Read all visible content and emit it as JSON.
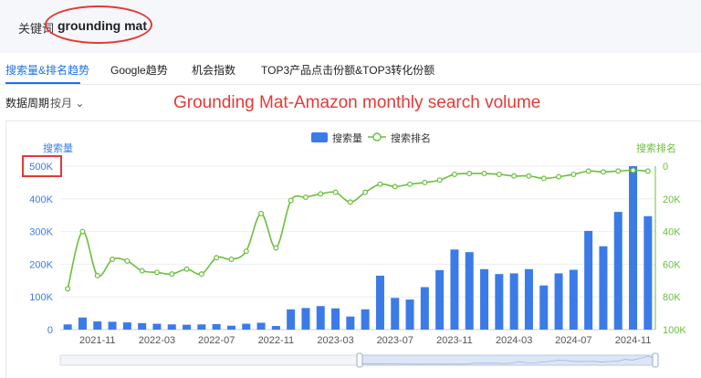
{
  "keyword_bar": {
    "label": "关键词",
    "value": "grounding mat"
  },
  "tabs": [
    {
      "label": "搜索量&排名趋势",
      "active": true
    },
    {
      "label": "Google趋势",
      "active": false
    },
    {
      "label": "机会指数",
      "active": false
    },
    {
      "label": "TOP3产品点击份额&TOP3转化份额",
      "active": false
    }
  ],
  "period": {
    "label": "数据周期",
    "value": "按月",
    "icon": "chevron-down-icon"
  },
  "annotation": "Grounding Mat-Amazon monthly search volume",
  "colors": {
    "bar": "#3b7be8",
    "line": "#6cbf3d",
    "active_tab": "#1a73e8",
    "annotation": "#e53935"
  },
  "chart_data": {
    "type": "bar",
    "legend": {
      "placement": "top-center",
      "bar_label": "搜索量",
      "line_label": "搜索排名"
    },
    "left_axis": {
      "title": "搜索量",
      "range": [
        0,
        500000
      ],
      "ticks": [
        "0",
        "100K",
        "200K",
        "300K",
        "400K",
        "500K"
      ]
    },
    "right_axis": {
      "title": "搜索排名",
      "range": [
        0,
        100000
      ],
      "reversed": true,
      "ticks": [
        "0",
        "20K",
        "40K",
        "60K",
        "80K",
        "100K"
      ]
    },
    "x_tick_labels": [
      "2021-11",
      "2022-03",
      "2022-07",
      "2022-11",
      "2023-03",
      "2023-07",
      "2023-11",
      "2024-03",
      "2024-07",
      "2024-11"
    ],
    "x_tick_indices": [
      2,
      6,
      10,
      14,
      18,
      22,
      26,
      30,
      34,
      38
    ],
    "categories": [
      "2021-09",
      "2021-10",
      "2021-11",
      "2021-12",
      "2022-01",
      "2022-02",
      "2022-03",
      "2022-04",
      "2022-05",
      "2022-06",
      "2022-07",
      "2022-08",
      "2022-09",
      "2022-10",
      "2022-11",
      "2022-12",
      "2023-01",
      "2023-02",
      "2023-03",
      "2023-04",
      "2023-05",
      "2023-06",
      "2023-07",
      "2023-08",
      "2023-09",
      "2023-10",
      "2023-11",
      "2023-12",
      "2024-01",
      "2024-02",
      "2024-03",
      "2024-04",
      "2024-05",
      "2024-06",
      "2024-07",
      "2024-08",
      "2024-09",
      "2024-10",
      "2024-11",
      "2024-12"
    ],
    "series": [
      {
        "name": "搜索量",
        "type": "bar",
        "values": [
          16000,
          37000,
          25000,
          24000,
          22000,
          20000,
          18000,
          16000,
          15000,
          16000,
          17000,
          12000,
          18000,
          21000,
          11000,
          62000,
          66000,
          72000,
          65000,
          40000,
          62000,
          165000,
          97000,
          92000,
          130000,
          182000,
          245000,
          237000,
          185000,
          170000,
          172000,
          185000,
          135000,
          172000,
          183000,
          302000,
          255000,
          360000,
          500000,
          347000
        ]
      },
      {
        "name": "搜索排名",
        "type": "line",
        "values": [
          75000,
          40000,
          67000,
          57000,
          58000,
          64000,
          65000,
          66000,
          63000,
          66000,
          56000,
          57000,
          52000,
          29000,
          50000,
          21000,
          19000,
          17000,
          16000,
          22000,
          16000,
          11000,
          12500,
          11000,
          10000,
          8500,
          5000,
          4500,
          4500,
          5000,
          6000,
          6000,
          7500,
          6500,
          5000,
          3000,
          3500,
          3000,
          2500,
          3000
        ]
      }
    ]
  }
}
